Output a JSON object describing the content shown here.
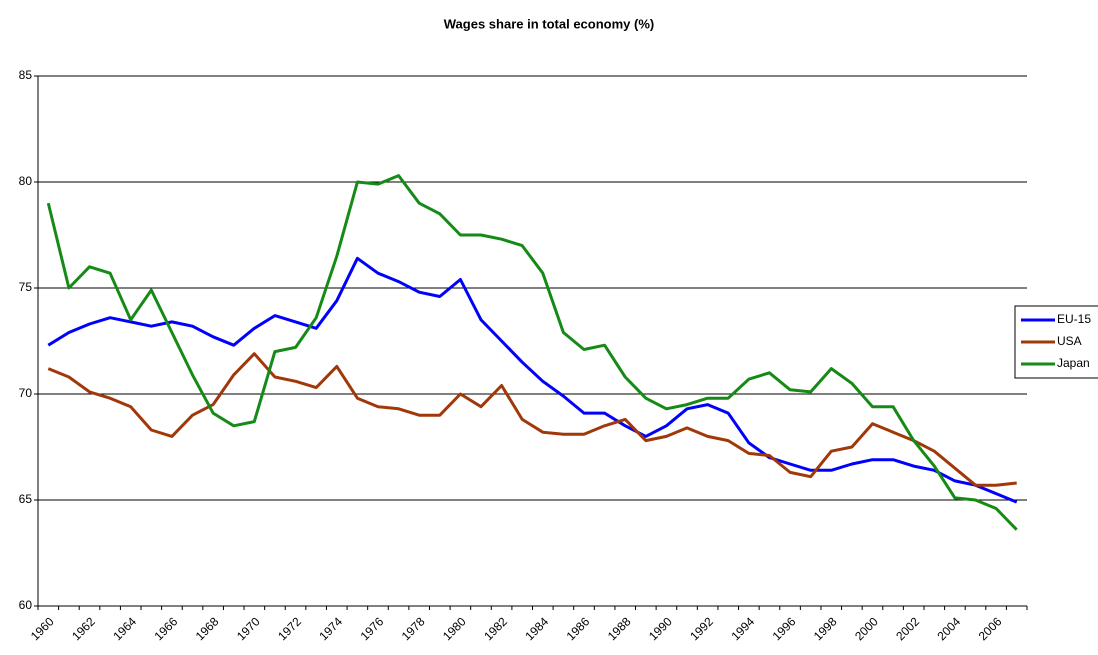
{
  "chart_data": {
    "type": "line",
    "title": "Wages share in total economy (%)",
    "categories": [
      "1960",
      null,
      "1962",
      null,
      "1964",
      null,
      "1966",
      null,
      "1968",
      null,
      "1970",
      null,
      "1972",
      null,
      "1974",
      null,
      "1976",
      null,
      "1978",
      null,
      "1980",
      null,
      "1982",
      null,
      "1984",
      null,
      "1986",
      null,
      "1988",
      null,
      "1990",
      null,
      "1992",
      null,
      "1994",
      null,
      "1996",
      null,
      "1998",
      null,
      "2000",
      null,
      "2002",
      null,
      "2004",
      null,
      "2006",
      null
    ],
    "series": [
      {
        "name": "EU-15",
        "color": "#0000ff",
        "values": [
          72.3,
          72.9,
          73.3,
          73.6,
          73.4,
          73.2,
          73.4,
          73.2,
          72.7,
          72.3,
          73.1,
          73.7,
          73.4,
          73.1,
          74.4,
          76.4,
          75.7,
          75.3,
          74.8,
          74.6,
          75.4,
          73.5,
          72.5,
          71.5,
          70.6,
          69.9,
          69.1,
          69.1,
          68.5,
          68.0,
          68.5,
          69.3,
          69.5,
          69.1,
          67.7,
          67.0,
          66.7,
          66.4,
          66.4,
          66.7,
          66.9,
          66.9,
          66.6,
          66.4,
          65.9,
          65.7,
          65.3,
          64.9
        ]
      },
      {
        "name": "USA",
        "color": "#a0380a",
        "values": [
          71.2,
          70.8,
          70.1,
          69.8,
          69.4,
          68.3,
          68.0,
          69.0,
          69.5,
          70.9,
          71.9,
          70.8,
          70.6,
          70.3,
          71.3,
          69.8,
          69.4,
          69.3,
          69.0,
          69.0,
          70.0,
          69.4,
          70.4,
          68.8,
          68.2,
          68.1,
          68.1,
          68.5,
          68.8,
          67.8,
          68.0,
          68.4,
          68.0,
          67.8,
          67.2,
          67.1,
          66.3,
          66.1,
          67.3,
          67.5,
          68.6,
          68.2,
          67.8,
          67.3,
          66.5,
          65.7,
          65.7,
          65.8
        ]
      },
      {
        "name": "Japan",
        "color": "#168a16",
        "values": [
          79.0,
          75.0,
          76.0,
          75.7,
          73.5,
          74.9,
          72.9,
          70.9,
          69.1,
          68.5,
          68.7,
          72.0,
          72.2,
          73.6,
          76.5,
          80.0,
          79.9,
          80.3,
          79.0,
          78.5,
          77.5,
          77.5,
          77.3,
          77.0,
          75.7,
          72.9,
          72.1,
          72.3,
          70.8,
          69.8,
          69.3,
          69.5,
          69.8,
          69.8,
          70.7,
          71.0,
          70.2,
          70.1,
          71.2,
          70.5,
          69.4,
          69.4,
          67.8,
          66.6,
          65.1,
          65.0,
          64.6,
          63.6
        ]
      }
    ],
    "ylim": [
      60,
      85
    ],
    "yticks": [
      60,
      65,
      70,
      75,
      80,
      85
    ],
    "grid": true,
    "legend": "right"
  }
}
